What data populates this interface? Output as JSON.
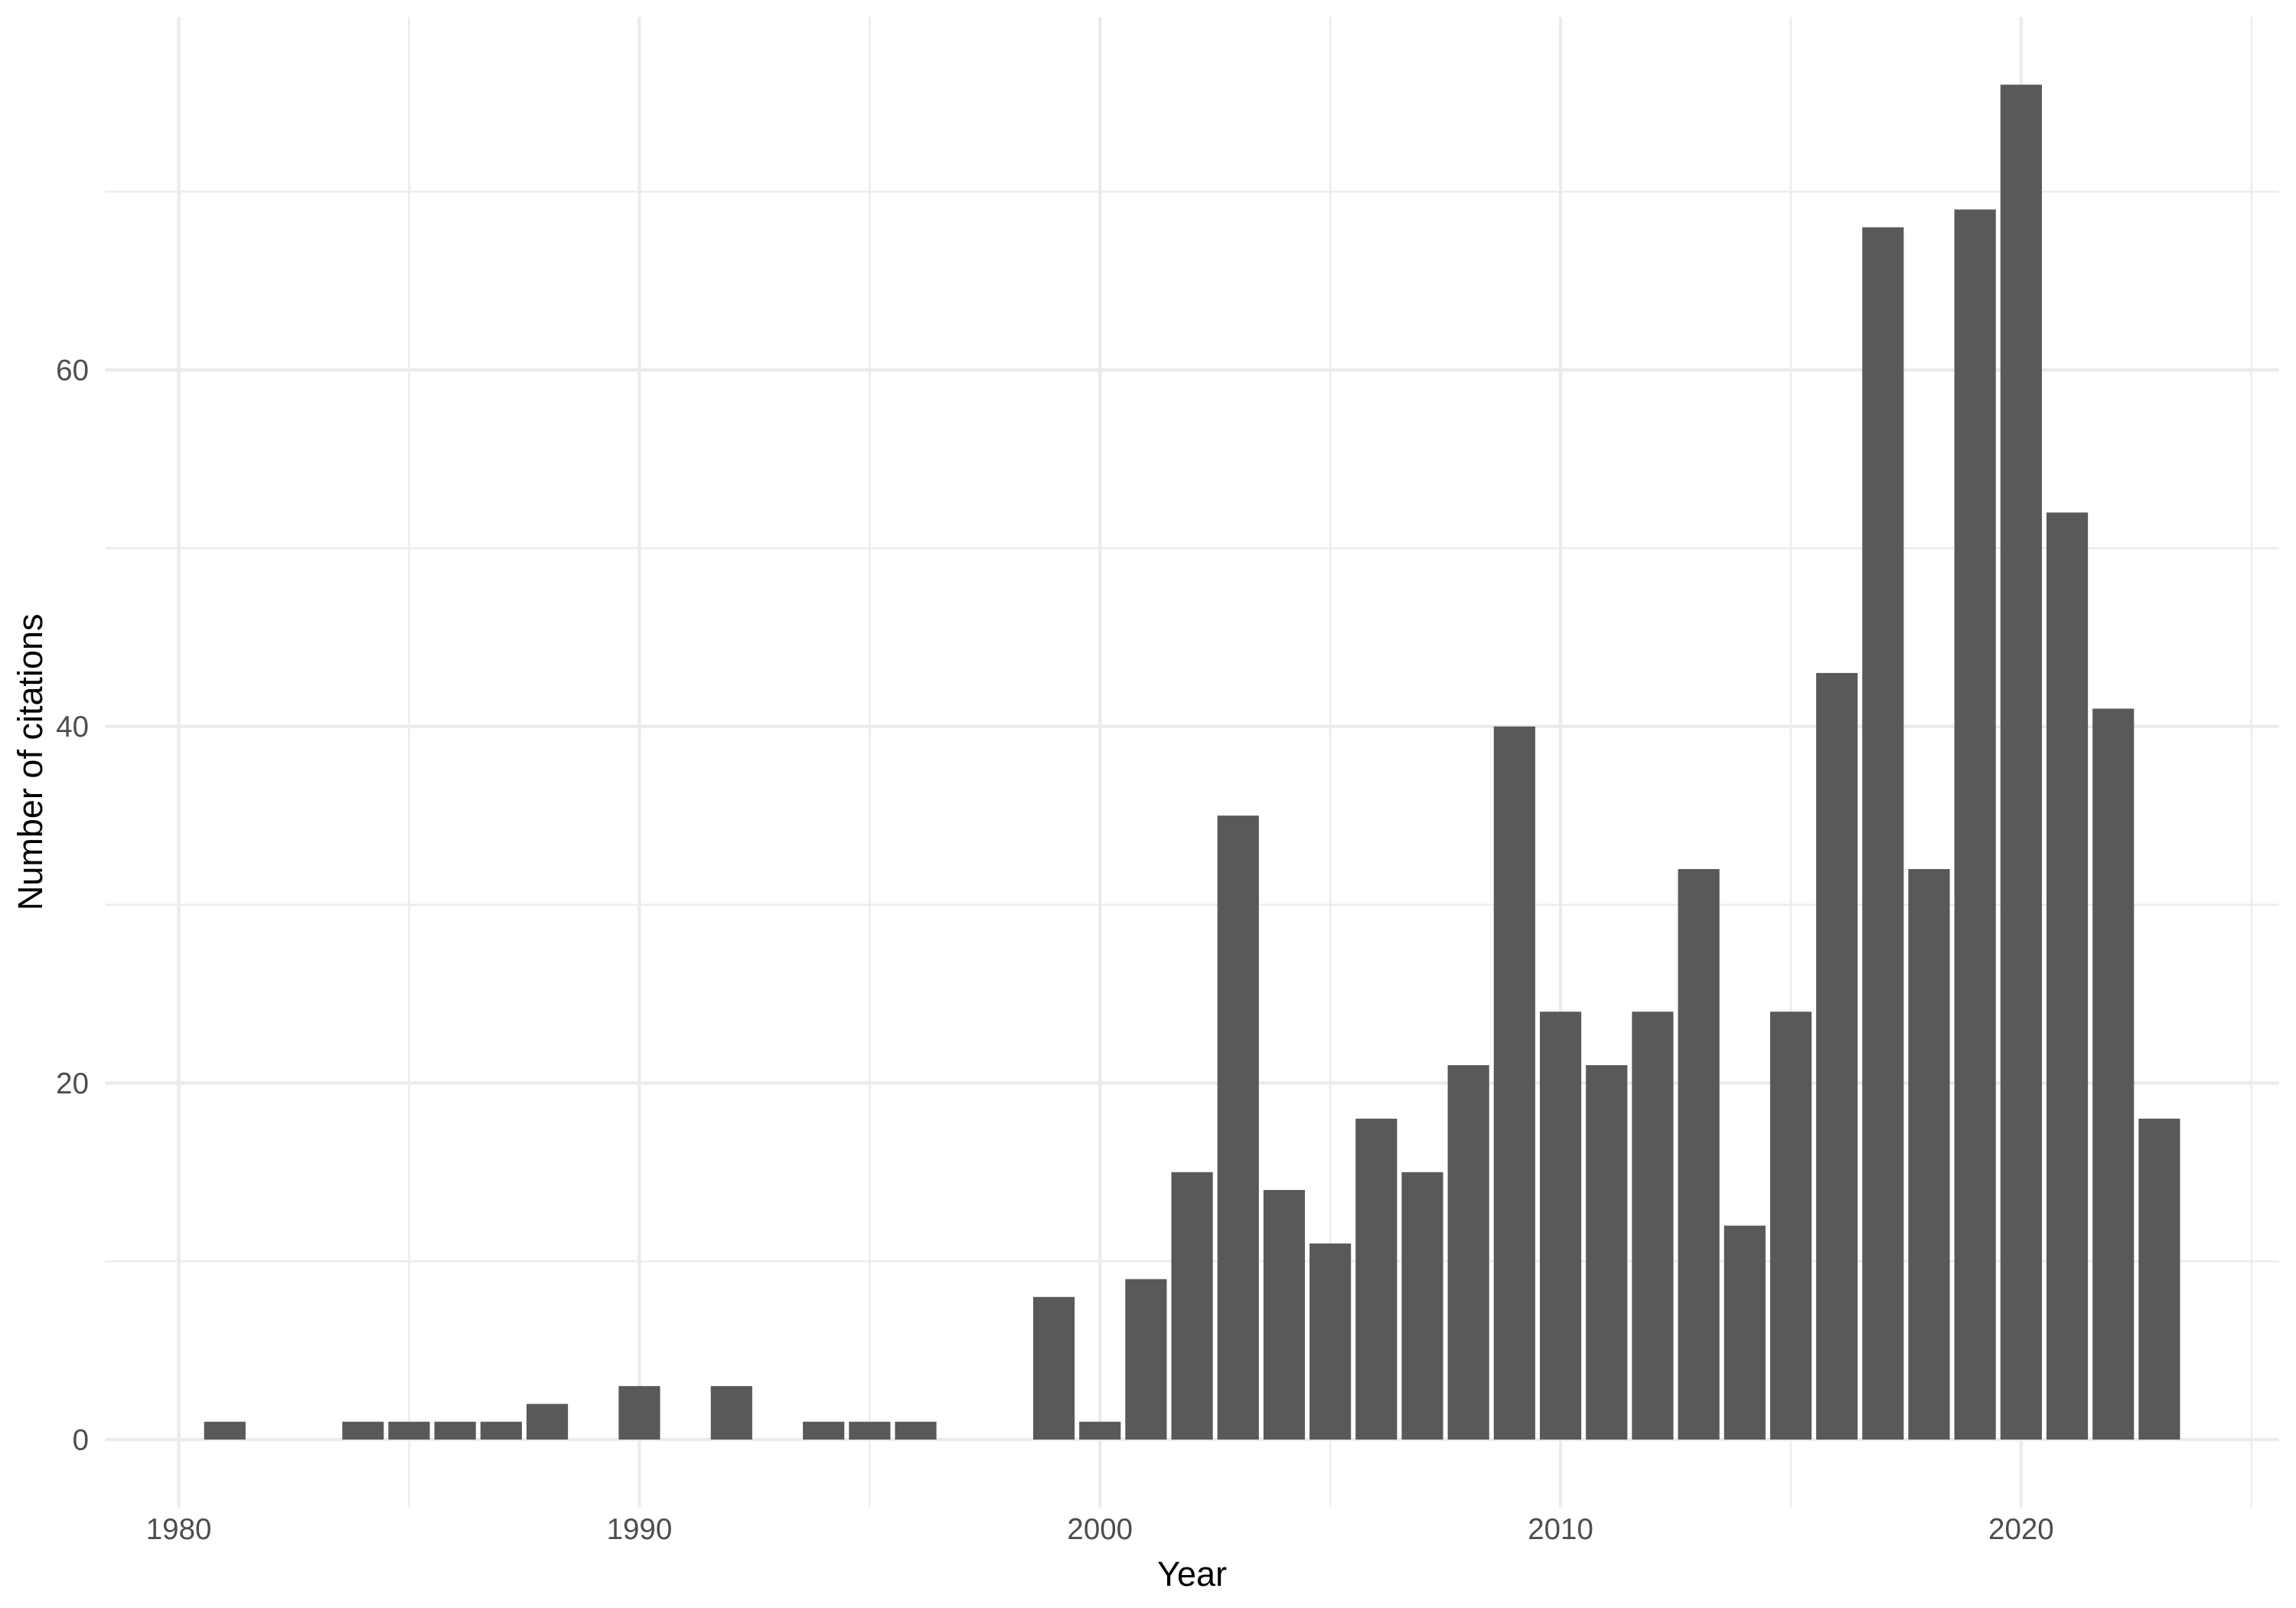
{
  "chart_data": {
    "type": "bar",
    "title": "",
    "xlabel": "Year",
    "ylabel": "Number of citations",
    "x": [
      1981,
      1982,
      1983,
      1984,
      1985,
      1986,
      1987,
      1988,
      1989,
      1990,
      1991,
      1992,
      1993,
      1994,
      1995,
      1996,
      1997,
      1998,
      1999,
      2000,
      2001,
      2002,
      2003,
      2004,
      2005,
      2006,
      2007,
      2008,
      2009,
      2010,
      2011,
      2012,
      2013,
      2014,
      2015,
      2016,
      2017,
      2018,
      2019,
      2020,
      2021,
      2022,
      2023
    ],
    "values": [
      1,
      0,
      0,
      1,
      1,
      1,
      1,
      2,
      0,
      3,
      0,
      3,
      0,
      1,
      1,
      1,
      0,
      0,
      8,
      1,
      9,
      15,
      35,
      14,
      11,
      18,
      15,
      21,
      40,
      24,
      21,
      24,
      32,
      12,
      24,
      43,
      68,
      32,
      69,
      76,
      52,
      41,
      18
    ],
    "bar_width": 0.9,
    "x_tick_labels": [
      "1980",
      "1990",
      "2000",
      "2010",
      "2020"
    ],
    "x_ticks_major": [
      1980,
      1990,
      2000,
      2010,
      2020
    ],
    "x_ticks_minor": [
      1985,
      1995,
      2005,
      2015,
      2025
    ],
    "y_tick_labels": [
      "0",
      "20",
      "40",
      "60"
    ],
    "y_ticks_major": [
      0,
      20,
      40,
      60
    ],
    "y_ticks_minor": [
      10,
      30,
      50,
      70
    ],
    "xlim": [
      1978.405,
      2025.595
    ],
    "ylim": [
      -3.8,
      79.8
    ],
    "grid": "on",
    "legend": "none",
    "colors": {
      "bar_fill": "#595959",
      "grid_line": "#EBEBEB",
      "axis_tick_text": "#4D4D4D",
      "axis_title_text": "#000000",
      "background": "#FFFFFF"
    }
  }
}
